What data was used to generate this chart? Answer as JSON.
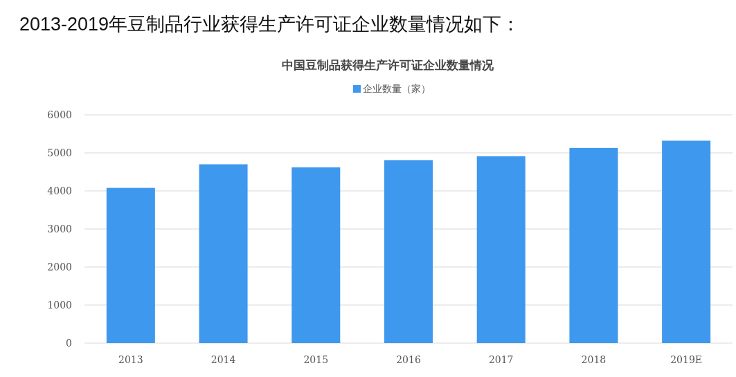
{
  "chart_data": {
    "type": "bar",
    "title": "中国豆制品获得生产许可证企业数量情况",
    "subtitle": "2013-2019年豆制品行业获得生产许可证企业数量情况如下：",
    "categories": [
      "2013",
      "2014",
      "2015",
      "2016",
      "2017",
      "2018",
      "2019E"
    ],
    "series": [
      {
        "name": "企业数量（家）",
        "color": "#3d98ee",
        "values": [
          4080,
          4700,
          4620,
          4810,
          4910,
          5130,
          5320
        ]
      }
    ],
    "ylim": [
      0,
      6000
    ],
    "yticks": [
      0,
      1000,
      2000,
      3000,
      4000,
      5000,
      6000
    ],
    "grid": "y",
    "legend": "top"
  }
}
